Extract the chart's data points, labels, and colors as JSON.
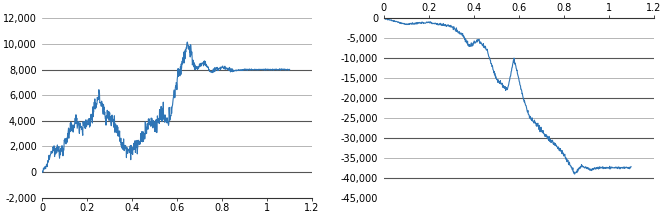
{
  "left_ylim": [
    -2000,
    12000
  ],
  "left_yticks": [
    -2000,
    0,
    2000,
    4000,
    6000,
    8000,
    10000,
    12000
  ],
  "left_xlim": [
    0,
    1.2
  ],
  "left_xticks": [
    0,
    0.2,
    0.4,
    0.6,
    0.8,
    1.0,
    1.2
  ],
  "right_ylim": [
    -45000,
    0
  ],
  "right_yticks": [
    -45000,
    -40000,
    -35000,
    -30000,
    -25000,
    -20000,
    -15000,
    -10000,
    -5000,
    0
  ],
  "right_xlim": [
    0,
    1.2
  ],
  "right_xticks": [
    0,
    0.2,
    0.4,
    0.6,
    0.8,
    1.0,
    1.2
  ],
  "line_color": "#2E75B6",
  "line_width": 0.8,
  "bg_color": "#ffffff",
  "grid_color": "#999999",
  "grid_color_bold": "#555555",
  "tick_label_fontsize": 7.0,
  "figsize": [
    6.64,
    2.16
  ],
  "dpi": 100
}
